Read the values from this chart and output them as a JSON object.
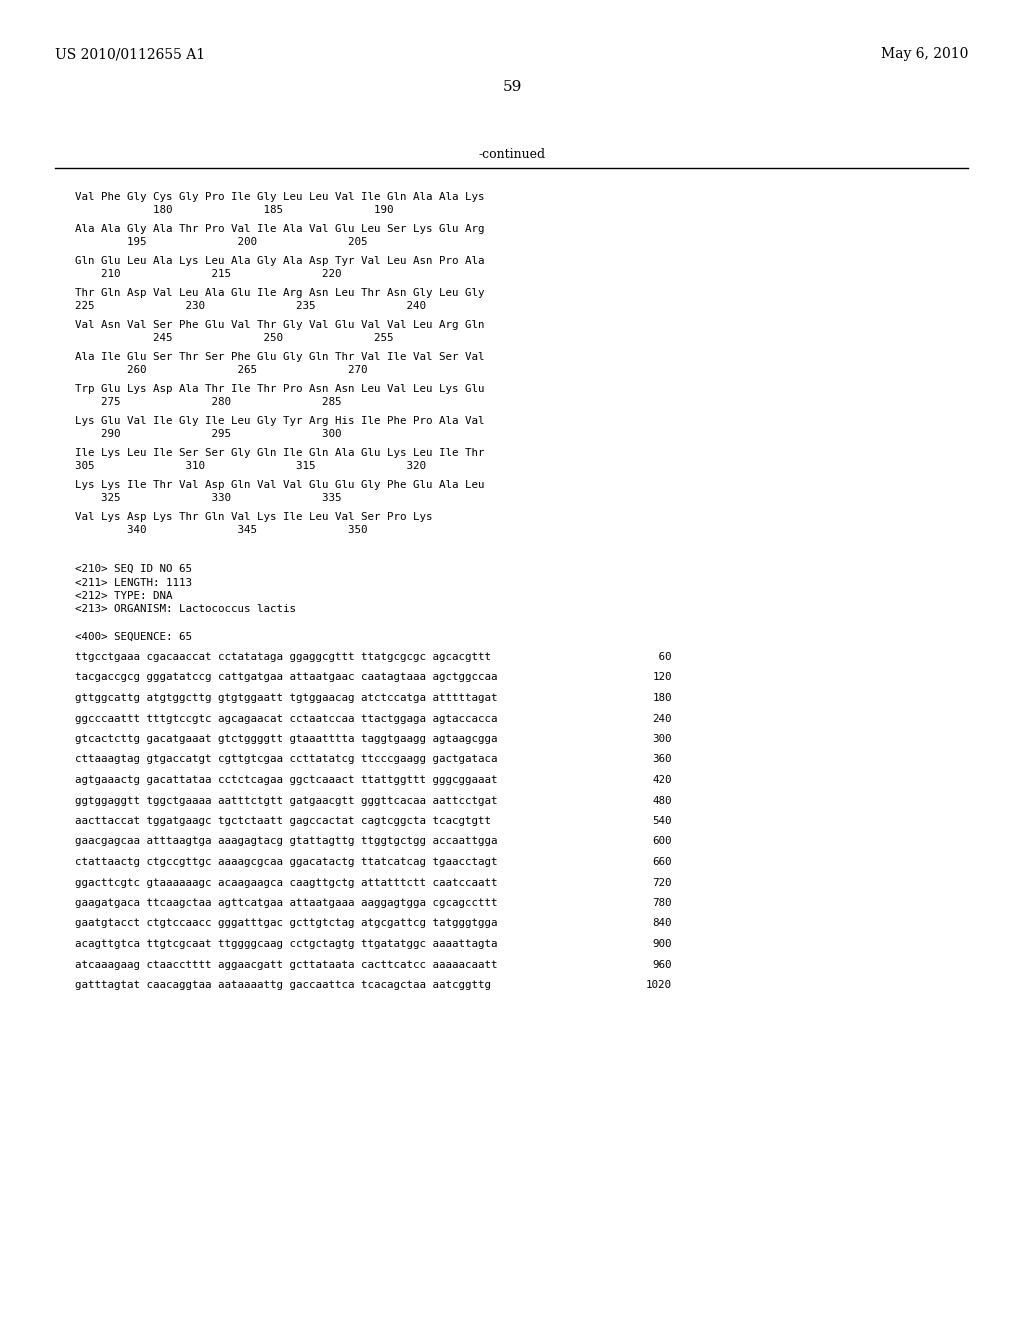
{
  "header_left": "US 2010/0112655 A1",
  "header_right": "May 6, 2010",
  "page_number": "59",
  "continued_label": "-continued",
  "background_color": "#ffffff",
  "text_color": "#000000",
  "protein_lines": [
    [
      "Val Phe Gly Cys Gly Pro Ile Gly Leu Leu Val Ile Gln Ala Ala Lys",
      "            180              185              190"
    ],
    [
      "Ala Ala Gly Ala Thr Pro Val Ile Ala Val Glu Leu Ser Lys Glu Arg",
      "        195              200              205"
    ],
    [
      "Gln Glu Leu Ala Lys Leu Ala Gly Ala Asp Tyr Val Leu Asn Pro Ala",
      "    210              215              220"
    ],
    [
      "Thr Gln Asp Val Leu Ala Glu Ile Arg Asn Leu Thr Asn Gly Leu Gly",
      "225              230              235              240"
    ],
    [
      "Val Asn Val Ser Phe Glu Val Thr Gly Val Glu Val Val Leu Arg Gln",
      "            245              250              255"
    ],
    [
      "Ala Ile Glu Ser Thr Ser Phe Glu Gly Gln Thr Val Ile Val Ser Val",
      "        260              265              270"
    ],
    [
      "Trp Glu Lys Asp Ala Thr Ile Thr Pro Asn Asn Leu Val Leu Lys Glu",
      "    275              280              285"
    ],
    [
      "Lys Glu Val Ile Gly Ile Leu Gly Tyr Arg His Ile Phe Pro Ala Val",
      "    290              295              300"
    ],
    [
      "Ile Lys Leu Ile Ser Ser Gly Gln Ile Gln Ala Glu Lys Leu Ile Thr",
      "305              310              315              320"
    ],
    [
      "Lys Lys Ile Thr Val Asp Gln Val Val Glu Glu Gly Phe Glu Ala Leu",
      "    325              330              335"
    ],
    [
      "Val Lys Asp Lys Thr Gln Val Lys Ile Leu Val Ser Pro Lys",
      "        340              345              350"
    ]
  ],
  "metadata_lines": [
    "<210> SEQ ID NO 65",
    "<211> LENGTH: 1113",
    "<212> TYPE: DNA",
    "<213> ORGANISM: Lactococcus lactis"
  ],
  "sequence_header": "<400> SEQUENCE: 65",
  "dna_lines": [
    [
      "ttgcctgaaa cgacaaccat cctatataga ggaggcgttt ttatgcgcgc agcacgttt",
      " 60"
    ],
    [
      "tacgaccgcg gggatatccg cattgatgaa attaatgaac caatagtaaa agctggccaa",
      "120"
    ],
    [
      "gttggcattg atgtggcttg gtgtggaatt tgtggaacag atctccatga atttttagat",
      "180"
    ],
    [
      "ggcccaattt tttgtccgtc agcagaacat cctaatccaa ttactggaga agtaccacca",
      "240"
    ],
    [
      "gtcactcttg gacatgaaat gtctggggtt gtaaatttta taggtgaagg agtaagcgga",
      "300"
    ],
    [
      "cttaaagtag gtgaccatgt cgttgtcgaa ccttatatcg ttcccgaagg gactgataca",
      "360"
    ],
    [
      "agtgaaactg gacattataa cctctcagaa ggctcaaact ttattggttt gggcggaaat",
      "420"
    ],
    [
      "ggtggaggtt tggctgaaaa aatttctgtt gatgaacgtt gggttcacaa aattcctgat",
      "480"
    ],
    [
      "aacttaccat tggatgaagc tgctctaatt gagccactat cagtcggcta tcacgtgtt",
      "540"
    ],
    [
      "gaacgagcaa atttaagtga aaagagtacg gtattagttg ttggtgctgg accaattgga",
      "600"
    ],
    [
      "ctattaactg ctgccgttgc aaaagcgcaa ggacatactg ttatcatcag tgaacctagt",
      "660"
    ],
    [
      "ggacttcgtc gtaaaaaagc acaagaagca caagttgctg attatttctt caatccaatt",
      "720"
    ],
    [
      "gaagatgaca ttcaagctaa agttcatgaa attaatgaaa aaggagtgga cgcagccttt",
      "780"
    ],
    [
      "gaatgtacct ctgtccaacc gggatttgac gcttgtctag atgcgattcg tatgggtgga",
      "840"
    ],
    [
      "acagttgtca ttgtcgcaat ttggggcaag cctgctagtg ttgatatggc aaaattagta",
      "900"
    ],
    [
      "atcaaagaag ctaacctttt aggaacgatt gcttataata cacttcatcc aaaaacaatt",
      "960"
    ],
    [
      "gatttagtat caacaggtaa aataaaattg gaccaattca tcacagctaa aatcggttg",
      "1020"
    ]
  ]
}
